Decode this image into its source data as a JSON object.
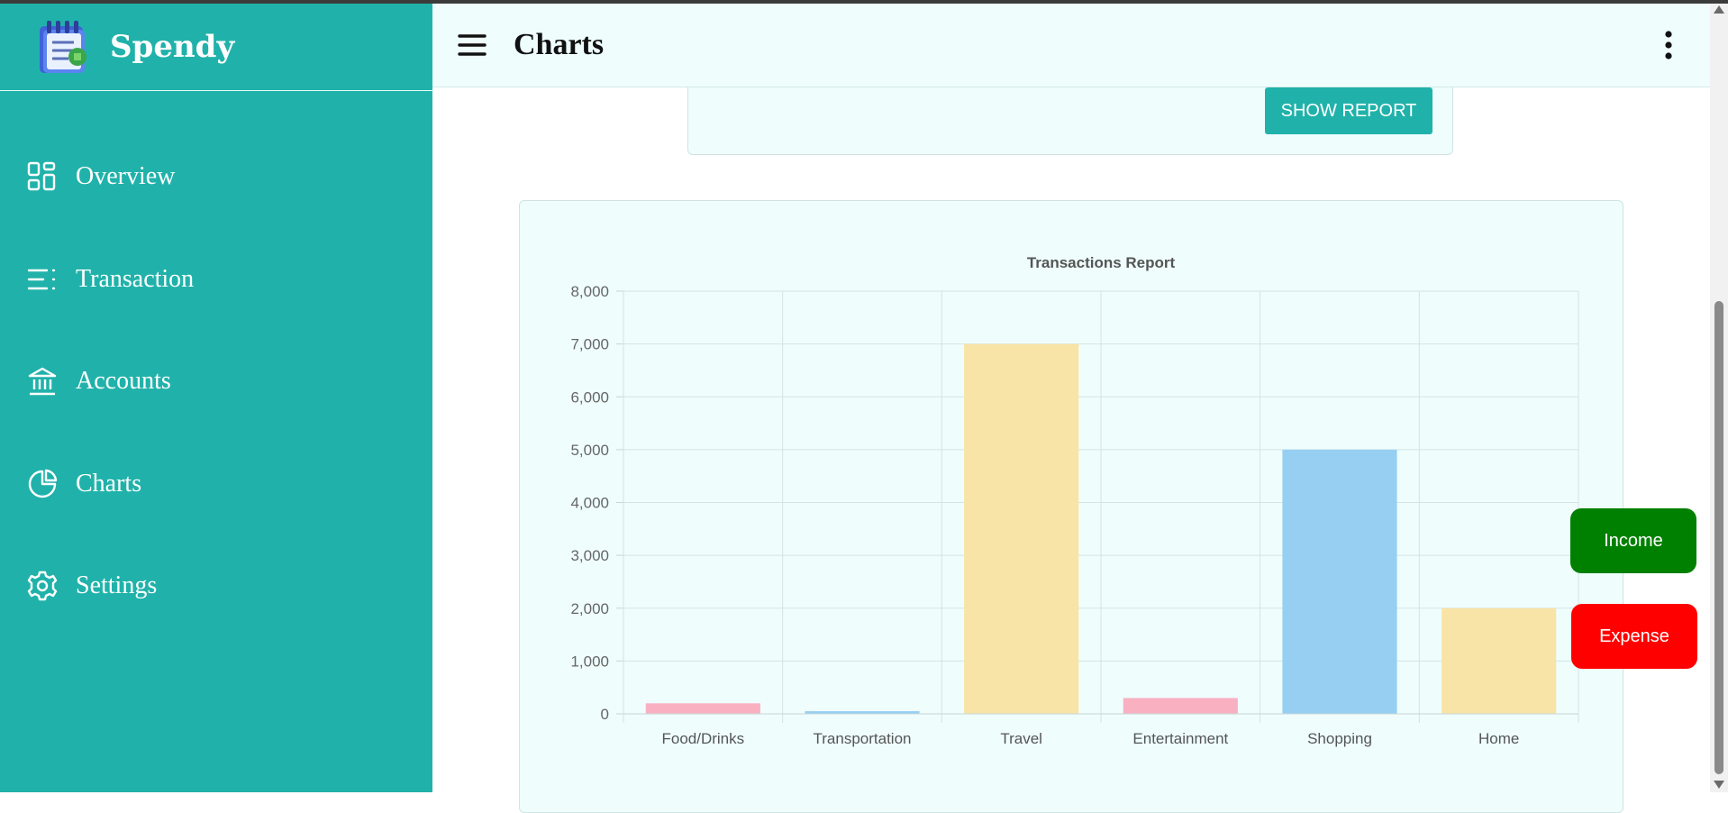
{
  "app": {
    "name": "Spendy"
  },
  "header": {
    "title": "Charts"
  },
  "sidebar": {
    "items": [
      {
        "label": "Overview",
        "icon": "grid-icon"
      },
      {
        "label": "Transaction",
        "icon": "list-icon"
      },
      {
        "label": "Accounts",
        "icon": "bank-icon"
      },
      {
        "label": "Charts",
        "icon": "pie-chart-icon"
      },
      {
        "label": "Settings",
        "icon": "gear-icon"
      }
    ]
  },
  "report": {
    "show_report_label": "SHOW REPORT"
  },
  "fab": {
    "income_label": "Income",
    "expense_label": "Expense"
  },
  "colors": {
    "teal": "#20b2aa",
    "card_bg": "#effefd",
    "income": "#008000",
    "expense": "#ff0000",
    "bar_pink": "#f9b1c2",
    "bar_blue": "#97cff3",
    "bar_yellow": "#f9e4a7"
  },
  "chart_data": {
    "type": "bar",
    "title": "Transactions Report",
    "categories": [
      "Food/Drinks",
      "Transportation",
      "Travel",
      "Entertainment",
      "Shopping",
      "Home"
    ],
    "values": [
      200,
      50,
      7000,
      300,
      5000,
      2000
    ],
    "bar_colors": [
      "#f9b1c2",
      "#97cff3",
      "#f9e4a7",
      "#f9b1c2",
      "#97cff3",
      "#f9e4a7"
    ],
    "ylim": [
      0,
      8000
    ],
    "yticks": [
      "0",
      "1,000",
      "2,000",
      "3,000",
      "4,000",
      "5,000",
      "6,000",
      "7,000",
      "8,000"
    ],
    "grid": true,
    "legend": "none"
  }
}
